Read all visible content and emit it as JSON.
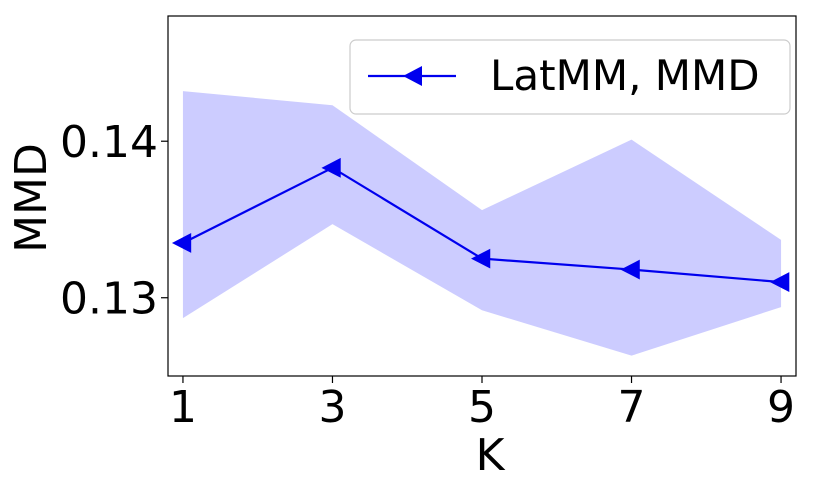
{
  "chart_data": {
    "type": "line",
    "x": [
      1,
      3,
      5,
      7,
      9
    ],
    "x_ticks": [
      "1",
      "3",
      "5",
      "7",
      "9"
    ],
    "y_ticks": [
      0.13,
      0.14
    ],
    "y_tick_labels": [
      "0.13",
      "0.14"
    ],
    "xlabel": "K",
    "ylabel": "MMD",
    "xlim": [
      0.8,
      9.2
    ],
    "ylim": [
      0.125,
      0.148
    ],
    "grid": false,
    "legend_placement": "top-right",
    "series": [
      {
        "name": "LatMM, MMD",
        "values": [
          0.1335,
          0.1383,
          0.1325,
          0.1318,
          0.131
        ],
        "lower": [
          0.1287,
          0.1347,
          0.1292,
          0.1263,
          0.1294
        ],
        "upper": [
          0.1432,
          0.1423,
          0.1356,
          0.1401,
          0.1337
        ],
        "color": "#0000ee",
        "band_color": "#ccccff",
        "marker": "triangle-left"
      }
    ]
  }
}
